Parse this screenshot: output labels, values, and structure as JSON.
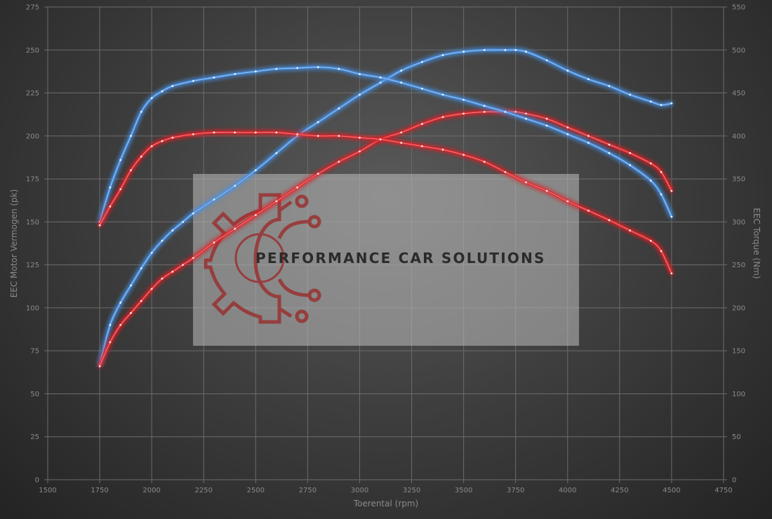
{
  "chart_data": {
    "type": "line",
    "xlabel": "Toerental (rpm)",
    "ylabel_left": "EEC Motor Vermogen (pk)",
    "ylabel_right": "EEC Torque (Nm)",
    "xlim": [
      1500,
      4750
    ],
    "ylim_left": [
      0,
      275
    ],
    "ylim_right": [
      0,
      550
    ],
    "x_ticks": [
      1500,
      1750,
      2000,
      2250,
      2500,
      2750,
      3000,
      3250,
      3500,
      3750,
      4000,
      4250,
      4500,
      4750
    ],
    "y_ticks_left": [
      0,
      25,
      50,
      75,
      100,
      125,
      150,
      175,
      200,
      225,
      250,
      275
    ],
    "y_ticks_right": [
      0,
      50,
      100,
      150,
      200,
      250,
      300,
      350,
      400,
      450,
      500,
      550
    ],
    "grid": true,
    "series": [
      {
        "axis": "left",
        "color": "#4a90e2",
        "x": [
          1750,
          1800,
          1850,
          1900,
          1950,
          2000,
          2050,
          2100,
          2150,
          2200,
          2300,
          2400,
          2500,
          2600,
          2700,
          2800,
          2900,
          3000,
          3100,
          3200,
          3300,
          3400,
          3500,
          3600,
          3700,
          3750,
          3800,
          3900,
          4000,
          4100,
          4200,
          4300,
          4400,
          4450,
          4500
        ],
        "y": [
          67,
          90,
          103,
          113,
          123,
          132,
          139,
          145,
          150,
          155,
          163,
          171,
          180,
          190,
          200,
          208,
          216,
          224,
          231,
          238,
          243,
          247,
          249,
          250,
          250,
          250,
          249,
          244,
          238,
          233,
          229,
          224,
          220,
          218,
          219
        ]
      },
      {
        "axis": "left",
        "color": "#e0262b",
        "x": [
          1750,
          1800,
          1850,
          1900,
          1950,
          2000,
          2050,
          2100,
          2150,
          2200,
          2300,
          2400,
          2500,
          2600,
          2700,
          2800,
          2900,
          3000,
          3100,
          3200,
          3300,
          3400,
          3500,
          3600,
          3700,
          3750,
          3800,
          3900,
          4000,
          4100,
          4200,
          4300,
          4400,
          4450,
          4500
        ],
        "y": [
          66,
          80,
          90,
          97,
          104,
          111,
          117,
          121,
          125,
          129,
          138,
          146,
          154,
          162,
          170,
          178,
          185,
          191,
          198,
          202,
          207,
          211,
          213,
          214,
          214,
          214,
          213,
          210,
          205,
          200,
          195,
          190,
          184,
          179,
          168
        ]
      },
      {
        "axis": "right",
        "color": "#4a90e2",
        "x": [
          1750,
          1800,
          1850,
          1900,
          1950,
          2000,
          2050,
          2100,
          2200,
          2300,
          2400,
          2500,
          2600,
          2700,
          2800,
          2900,
          3000,
          3100,
          3200,
          3300,
          3400,
          3500,
          3600,
          3700,
          3800,
          3900,
          4000,
          4100,
          4200,
          4300,
          4400,
          4450,
          4500
        ],
        "y": [
          300,
          340,
          372,
          400,
          428,
          444,
          452,
          458,
          464,
          468,
          472,
          475,
          478,
          479,
          480,
          478,
          472,
          468,
          462,
          455,
          448,
          442,
          435,
          428,
          420,
          412,
          402,
          392,
          380,
          366,
          348,
          332,
          306
        ]
      },
      {
        "axis": "right",
        "color": "#e0262b",
        "x": [
          1750,
          1800,
          1850,
          1900,
          1950,
          2000,
          2050,
          2100,
          2200,
          2300,
          2400,
          2500,
          2600,
          2700,
          2800,
          2900,
          3000,
          3100,
          3200,
          3300,
          3400,
          3500,
          3600,
          3700,
          3800,
          3900,
          4000,
          4100,
          4200,
          4300,
          4400,
          4450,
          4500
        ],
        "y": [
          296,
          318,
          338,
          360,
          376,
          388,
          394,
          398,
          402,
          404,
          404,
          404,
          404,
          402,
          400,
          400,
          398,
          396,
          392,
          388,
          384,
          378,
          370,
          358,
          346,
          336,
          324,
          313,
          302,
          290,
          278,
          266,
          240
        ]
      }
    ]
  },
  "watermark": {
    "text": "PERFORMANCE CAR SOLUTIONS",
    "text_color": "#2b2b2b",
    "icon_color": "#9a2a2a",
    "box_color": "#bdbdbd",
    "icon": "gear-circuit-icon"
  },
  "colors": {
    "grid": "#6c6c6c",
    "tick": "#8a8a8a"
  }
}
